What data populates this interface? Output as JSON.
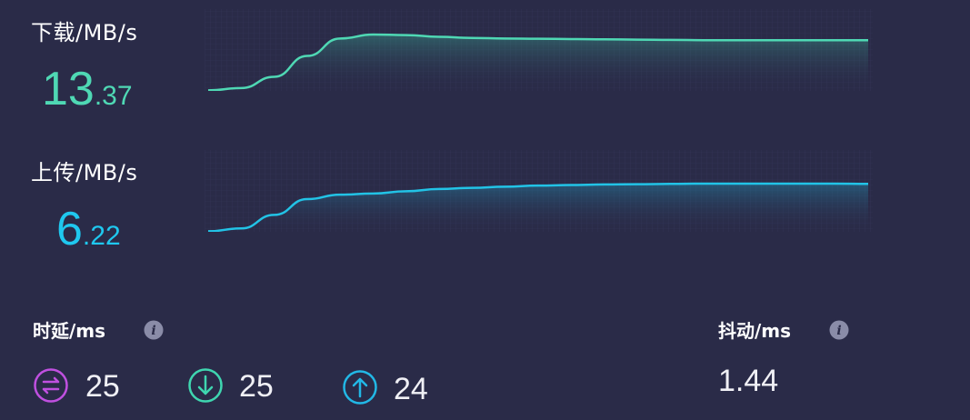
{
  "download": {
    "label": "下载/MB/s",
    "value_int": "13",
    "value_dec": ".37",
    "color": "#4fd8b4",
    "curve": [
      0.01,
      0.05,
      0.25,
      0.62,
      0.93,
      1.0,
      0.99,
      0.96,
      0.94,
      0.93,
      0.925,
      0.92,
      0.915,
      0.91,
      0.905,
      0.9,
      0.9,
      0.9,
      0.9,
      0.9,
      0.9
    ]
  },
  "upload": {
    "label": "上传/MB/s",
    "value_int": "6",
    "value_dec": ".22",
    "color": "#22c3e6",
    "curve": [
      0.01,
      0.06,
      0.3,
      0.58,
      0.66,
      0.68,
      0.72,
      0.76,
      0.78,
      0.8,
      0.82,
      0.83,
      0.84,
      0.845,
      0.85,
      0.855,
      0.855,
      0.855,
      0.855,
      0.855,
      0.85
    ]
  },
  "latency": {
    "label": "时延/ms",
    "info_icon": "info-icon",
    "idle": {
      "icon": "swap-arrows-icon",
      "value": "25",
      "color": "#c050e0"
    },
    "down": {
      "icon": "arrow-down-icon",
      "value": "25",
      "color": "#3fd6b0"
    },
    "up": {
      "icon": "arrow-up-icon",
      "value": "24",
      "color": "#22b8e6"
    }
  },
  "jitter": {
    "label": "抖动/ms",
    "info_icon": "info-icon",
    "value": "1.44"
  }
}
